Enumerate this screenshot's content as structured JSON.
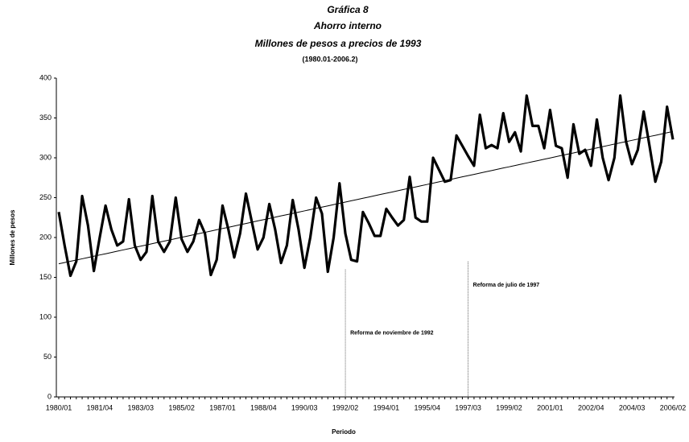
{
  "chart_data": {
    "type": "line",
    "title_lines": [
      "Gráfica 8",
      "Ahorro interno",
      "Millones de pesos a precios de 1993"
    ],
    "subtitle": "(1980.01-2006.2)",
    "y_label": "Millones de pesos",
    "x_label": "Periodo",
    "categories": [
      "1980/01",
      null,
      null,
      null,
      null,
      null,
      null,
      "1981/04",
      null,
      null,
      null,
      null,
      null,
      null,
      "1983/03",
      null,
      null,
      null,
      null,
      null,
      null,
      "1985/02",
      null,
      null,
      null,
      null,
      null,
      null,
      "1987/01",
      null,
      null,
      null,
      null,
      null,
      null,
      "1988/04",
      null,
      null,
      null,
      null,
      null,
      null,
      "1990/03",
      null,
      null,
      null,
      null,
      null,
      null,
      "1992/02",
      null,
      null,
      null,
      null,
      null,
      null,
      "1994/01",
      null,
      null,
      null,
      null,
      null,
      null,
      "1995/04",
      null,
      null,
      null,
      null,
      null,
      null,
      "1997/03",
      null,
      null,
      null,
      null,
      null,
      null,
      "1999/02",
      null,
      null,
      null,
      null,
      null,
      null,
      "2001/01",
      null,
      null,
      null,
      null,
      null,
      null,
      "2002/04",
      null,
      null,
      null,
      null,
      null,
      null,
      "2004/03",
      null,
      null,
      null,
      null,
      null,
      null,
      "2006/02"
    ],
    "series": [
      {
        "color": "#000000",
        "width": 3.2,
        "values": [
          232,
          190,
          152,
          170,
          252,
          215,
          158,
          200,
          240,
          210,
          190,
          195,
          248,
          190,
          172,
          182,
          252,
          195,
          182,
          195,
          250,
          198,
          182,
          195,
          222,
          205,
          153,
          172,
          240,
          210,
          175,
          205,
          255,
          220,
          185,
          200,
          242,
          210,
          168,
          190,
          247,
          210,
          162,
          200,
          250,
          230,
          157,
          200,
          268,
          205,
          172,
          170,
          232,
          218,
          202,
          202,
          236,
          225,
          215,
          222,
          276,
          225,
          220,
          220,
          300,
          285,
          270,
          272,
          328,
          315,
          302,
          290,
          354,
          312,
          316,
          312,
          356,
          320,
          332,
          308,
          378,
          340,
          340,
          312,
          360,
          315,
          312,
          275,
          342,
          305,
          310,
          290,
          348,
          300,
          272,
          300,
          378,
          320,
          292,
          310,
          358,
          315,
          270,
          295,
          364,
          323
        ]
      },
      {
        "color": "#000000",
        "width": 1,
        "values": [
          167,
          168.6,
          170.2,
          171.7,
          173.3,
          174.9,
          176.5,
          178.1,
          179.6,
          181.2,
          182.8,
          184.4,
          186,
          187.6,
          189.1,
          190.7,
          192.3,
          193.9,
          195.5,
          197,
          198.6,
          200.2,
          201.8,
          203.4,
          204.9,
          206.5,
          208.1,
          209.7,
          211.3,
          212.8,
          214.4,
          216,
          217.6,
          219.2,
          220.8,
          222.3,
          223.9,
          225.5,
          227.1,
          228.7,
          230.2,
          231.8,
          233.4,
          235,
          236.6,
          238.1,
          239.7,
          241.3,
          242.9,
          244.5,
          246.1,
          247.6,
          249.2,
          250.8,
          252.4,
          254,
          255.5,
          257.1,
          258.7,
          260.3,
          261.9,
          263.4,
          265,
          266.6,
          268.2,
          269.8,
          271.3,
          272.9,
          274.5,
          276.1,
          277.7,
          279.2,
          280.8,
          282.4,
          284,
          285.6,
          287.2,
          288.7,
          290.3,
          291.9,
          293.5,
          295.1,
          296.6,
          298.2,
          299.8,
          301.4,
          303,
          304.5,
          306.1,
          307.7,
          309.3,
          310.9,
          312.4,
          314,
          315.6,
          317.2,
          318.8,
          320.3,
          321.9,
          323.5,
          325.1,
          326.7,
          328.2,
          329.8,
          331.4,
          333
        ]
      }
    ],
    "annotations": [
      {
        "text": "Reforma de noviembre de 1992",
        "x": "1992/02",
        "y": 80,
        "top": 160
      },
      {
        "text": "Reforma de  julio de 1997",
        "x": "1997/03",
        "y": 140,
        "top": 170
      }
    ],
    "ylim": [
      0,
      400
    ],
    "yticks": [
      0,
      50,
      100,
      150,
      200,
      250,
      300,
      350,
      400
    ],
    "grid": false
  }
}
